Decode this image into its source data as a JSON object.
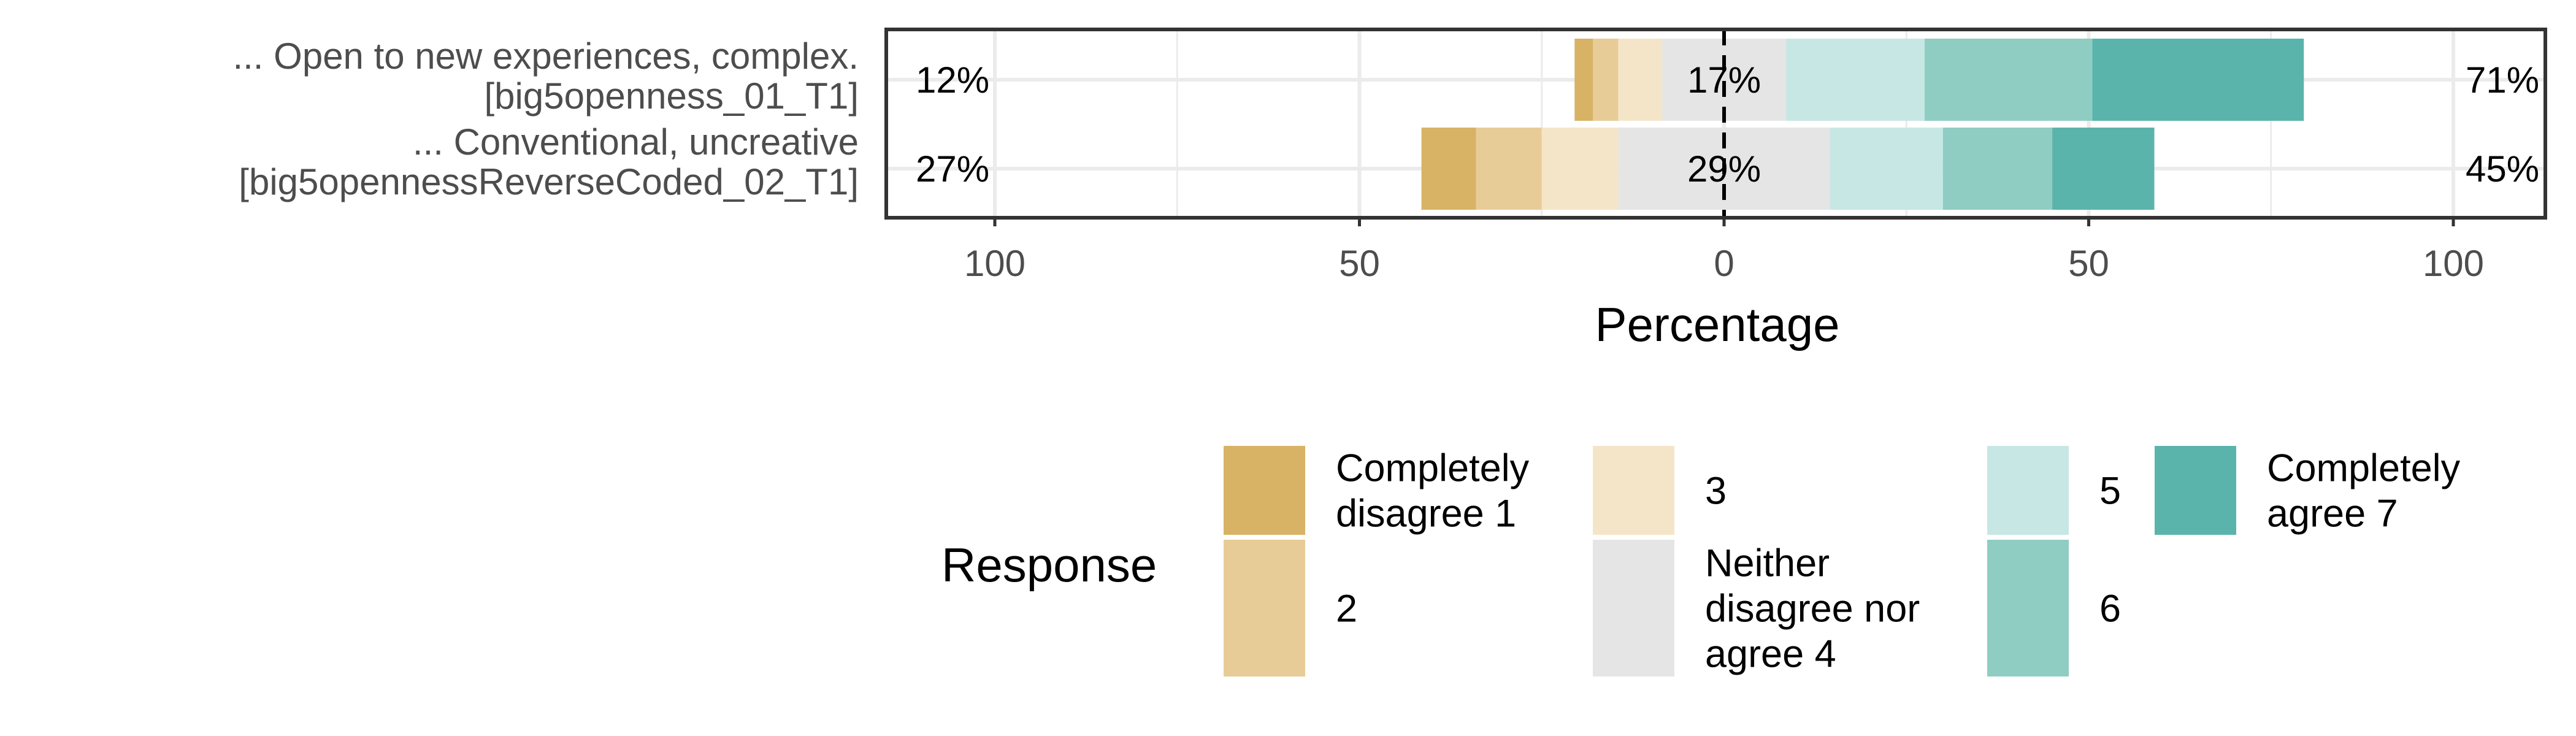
{
  "chart_data": {
    "type": "bar",
    "orientation": "horizontal",
    "stacked": true,
    "diverging": true,
    "xlabel": "Percentage",
    "xlim": [
      -100,
      100
    ],
    "xticks": [
      -100,
      -50,
      0,
      50,
      100
    ],
    "xtick_labels": [
      "100",
      "50",
      "0",
      "50",
      "100"
    ],
    "grid": true,
    "categories": [
      "... Open to new experiences, complex. [big5openness_01_T1]",
      "... Conventional, uncreative [big5opennessReverseCoded_02_T1]"
    ],
    "category_lines": [
      [
        "... Open to new experiences, complex.",
        "[big5openness_01_T1]"
      ],
      [
        "... Conventional, uncreative",
        "[big5opennessReverseCoded_02_T1]"
      ]
    ],
    "series": [
      {
        "name": "Completely disagree 1",
        "color": "#D8B365",
        "values": [
          2.5,
          7.5
        ]
      },
      {
        "name": "2",
        "color": "#E8CC97",
        "values": [
          3.5,
          9
        ]
      },
      {
        "name": "3",
        "color": "#F5E5C8",
        "values": [
          6,
          10.5
        ]
      },
      {
        "name": "Neither disagree nor agree 4",
        "color": "#E5E5E5",
        "values": [
          17,
          29
        ]
      },
      {
        "name": "5",
        "color": "#C7E7E5",
        "values": [
          19,
          15.5
        ]
      },
      {
        "name": "6",
        "color": "#8FCDC3",
        "values": [
          23,
          15
        ]
      },
      {
        "name": "Completely agree 7",
        "color": "#5AB4AC",
        "values": [
          29,
          14
        ]
      }
    ],
    "left_totals": [
      "12%",
      "27%"
    ],
    "center_labels": [
      "17%",
      "29%"
    ],
    "right_totals": [
      "71%",
      "45%"
    ],
    "legend": {
      "title": "Response",
      "placement": "bottom",
      "columns": [
        [
          {
            "series": 0,
            "lines": [
              "Completely",
              "disagree 1"
            ]
          },
          {
            "series": 1,
            "lines": [
              "2"
            ]
          }
        ],
        [
          {
            "series": 2,
            "lines": [
              "3"
            ]
          },
          {
            "series": 3,
            "lines": [
              "Neither",
              "disagree nor",
              "agree 4"
            ]
          }
        ],
        [
          {
            "series": 4,
            "lines": [
              "5"
            ]
          },
          {
            "series": 5,
            "lines": [
              "6"
            ]
          }
        ],
        [
          {
            "series": 6,
            "lines": [
              "Completely",
              "agree 7"
            ]
          }
        ]
      ]
    }
  }
}
